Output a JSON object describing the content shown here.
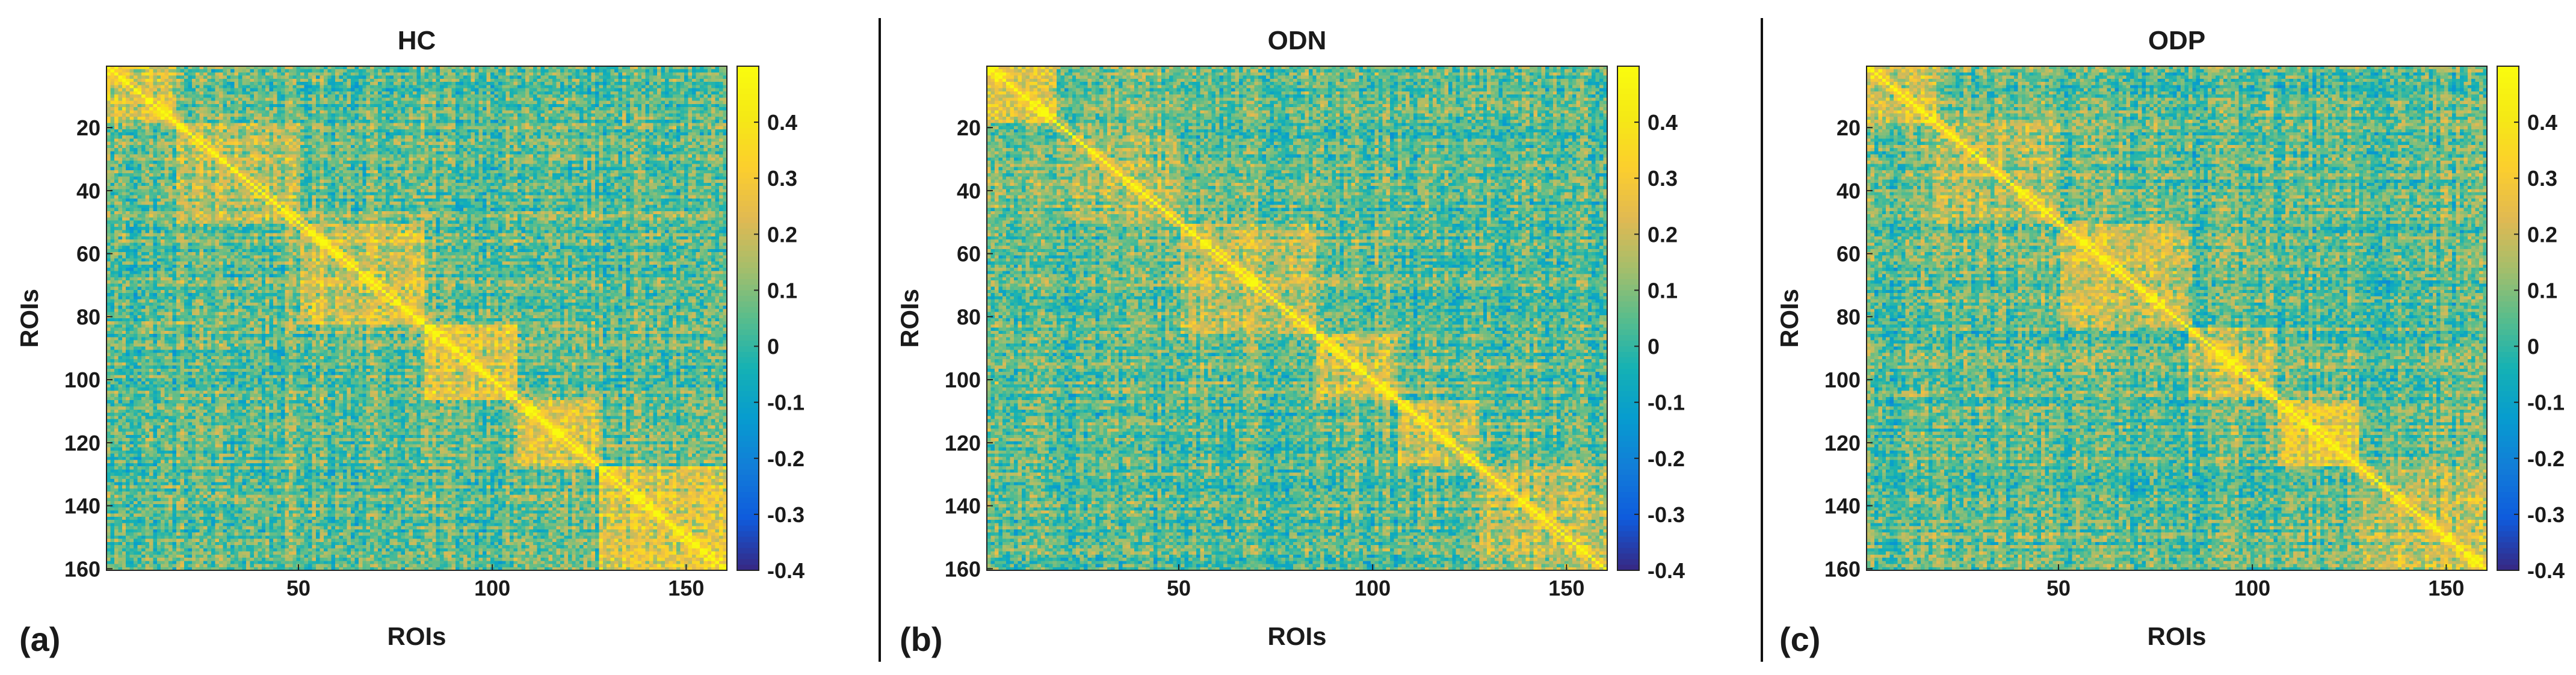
{
  "chart_data": [
    {
      "type": "heatmap",
      "panel_label": "(a)",
      "title": "HC",
      "xlabel": "ROIs",
      "ylabel": "ROIs",
      "n_rois": 160,
      "xlim": [
        1,
        160
      ],
      "ylim": [
        1,
        160
      ],
      "x_ticks": [
        50,
        100,
        150
      ],
      "y_ticks": [
        20,
        40,
        60,
        80,
        100,
        120,
        140,
        160
      ],
      "clim": [
        -0.4,
        0.5
      ],
      "colorbar_ticks": [
        0.4,
        0.3,
        0.2,
        0.1,
        0,
        -0.1,
        -0.2,
        -0.3,
        -0.4
      ],
      "colormap": "parula",
      "diagonal_value": 0.5,
      "blocks": [
        {
          "start": 1,
          "end": 18,
          "value": 0.28
        },
        {
          "start": 19,
          "end": 50,
          "value": 0.2
        },
        {
          "start": 51,
          "end": 82,
          "value": 0.26
        },
        {
          "start": 83,
          "end": 106,
          "value": 0.3
        },
        {
          "start": 107,
          "end": 127,
          "value": 0.29
        },
        {
          "start": 128,
          "end": 160,
          "value": 0.28
        }
      ],
      "background_value": 0.05
    },
    {
      "type": "heatmap",
      "panel_label": "(b)",
      "title": "ODN",
      "xlabel": "ROIs",
      "ylabel": "ROIs",
      "n_rois": 160,
      "xlim": [
        1,
        160
      ],
      "ylim": [
        1,
        160
      ],
      "x_ticks": [
        50,
        100,
        150
      ],
      "y_ticks": [
        20,
        40,
        60,
        80,
        100,
        120,
        140,
        160
      ],
      "clim": [
        -0.4,
        0.5
      ],
      "colorbar_ticks": [
        0.4,
        0.3,
        0.2,
        0.1,
        0,
        -0.1,
        -0.2,
        -0.3,
        -0.4
      ],
      "colormap": "parula",
      "diagonal_value": 0.5,
      "blocks": [
        {
          "start": 1,
          "end": 18,
          "value": 0.25
        },
        {
          "start": 19,
          "end": 50,
          "value": 0.16
        },
        {
          "start": 51,
          "end": 85,
          "value": 0.22
        },
        {
          "start": 86,
          "end": 106,
          "value": 0.24
        },
        {
          "start": 107,
          "end": 127,
          "value": 0.25
        },
        {
          "start": 128,
          "end": 160,
          "value": 0.22
        }
      ],
      "background_value": 0.05
    },
    {
      "type": "heatmap",
      "panel_label": "(c)",
      "title": "ODP",
      "xlabel": "ROIs",
      "ylabel": "ROIs",
      "n_rois": 160,
      "xlim": [
        1,
        160
      ],
      "ylim": [
        1,
        160
      ],
      "x_ticks": [
        50,
        100,
        150
      ],
      "y_ticks": [
        20,
        40,
        60,
        80,
        100,
        120,
        140,
        160
      ],
      "clim": [
        -0.4,
        0.5
      ],
      "colorbar_ticks": [
        0.4,
        0.3,
        0.2,
        0.1,
        0,
        -0.1,
        -0.2,
        -0.3,
        -0.4
      ],
      "colormap": "parula",
      "diagonal_value": 0.5,
      "blocks": [
        {
          "start": 1,
          "end": 18,
          "value": 0.24
        },
        {
          "start": 19,
          "end": 50,
          "value": 0.17
        },
        {
          "start": 51,
          "end": 83,
          "value": 0.25
        },
        {
          "start": 84,
          "end": 106,
          "value": 0.22
        },
        {
          "start": 107,
          "end": 127,
          "value": 0.3
        },
        {
          "start": 128,
          "end": 160,
          "value": 0.22
        }
      ],
      "background_value": 0.05
    }
  ]
}
